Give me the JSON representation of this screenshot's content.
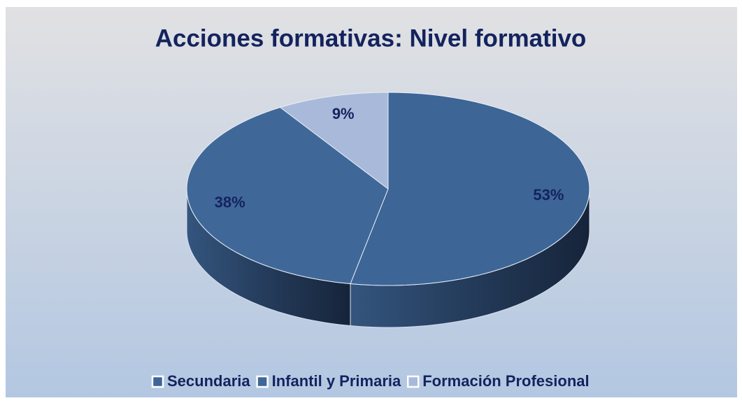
{
  "chart_data": {
    "type": "pie3d",
    "title": "Acciones formativas: Nivel formativo",
    "categories": [
      "Secundaria",
      "Infantil y Primaria",
      "Formación Profesional"
    ],
    "values": [
      53,
      38,
      9
    ],
    "value_labels": [
      "53%",
      "38%",
      "9%"
    ],
    "colors": [
      "#3d6596",
      "#3f6898",
      "#a9b9da"
    ],
    "legend": "bottom"
  }
}
